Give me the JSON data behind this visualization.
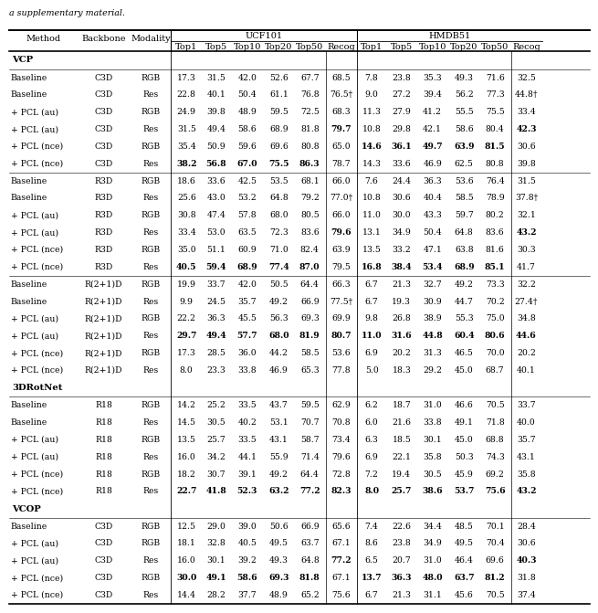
{
  "title_text": "a supplementary material.",
  "ucf101_header": "UCF101",
  "hmdb51_header": "HMDB51",
  "sub_headers": [
    "Top1",
    "Top5",
    "Top10",
    "Top20",
    "Top50",
    "Recog"
  ],
  "sections": [
    {
      "name": "VCP",
      "rows": [
        [
          "Baseline",
          "C3D",
          "RGB",
          "17.3",
          "31.5",
          "42.0",
          "52.6",
          "67.7",
          "68.5",
          "7.8",
          "23.8",
          "35.3",
          "49.3",
          "71.6",
          "32.5"
        ],
        [
          "Baseline",
          "C3D",
          "Res",
          "22.8",
          "40.1",
          "50.4",
          "61.1",
          "76.8",
          "76.5†",
          "9.0",
          "27.2",
          "39.4",
          "56.2",
          "77.3",
          "44.8†"
        ],
        [
          "+ PCL (au)",
          "C3D",
          "RGB",
          "24.9",
          "39.8",
          "48.9",
          "59.5",
          "72.5",
          "68.3",
          "11.3",
          "27.9",
          "41.2",
          "55.5",
          "75.5",
          "33.4"
        ],
        [
          "+ PCL (au)",
          "C3D",
          "Res",
          "31.5",
          "49.4",
          "58.6",
          "68.9",
          "81.8",
          "**79.7**",
          "10.8",
          "29.8",
          "42.1",
          "58.6",
          "80.4",
          "**42.3**"
        ],
        [
          "+ PCL (nce)",
          "C3D",
          "RGB",
          "35.4",
          "50.9",
          "59.6",
          "69.6",
          "80.8",
          "65.0",
          "**14.6**",
          "**36.1**",
          "**49.7**",
          "**63.9**",
          "**81.5**",
          "30.6"
        ],
        [
          "+ PCL (nce)",
          "C3D",
          "Res",
          "**38.2**",
          "**56.8**",
          "**67.0**",
          "**75.5**",
          "**86.3**",
          "78.7",
          "14.3",
          "33.6",
          "46.9",
          "62.5",
          "80.8",
          "39.8"
        ],
        [
          "Baseline",
          "R3D",
          "RGB",
          "18.6",
          "33.6",
          "42.5",
          "53.5",
          "68.1",
          "66.0",
          "7.6",
          "24.4",
          "36.3",
          "53.6",
          "76.4",
          "31.5"
        ],
        [
          "Baseline",
          "R3D",
          "Res",
          "25.6",
          "43.0",
          "53.2",
          "64.8",
          "79.2",
          "77.0†",
          "10.8",
          "30.6",
          "40.4",
          "58.5",
          "78.9",
          "37.8†"
        ],
        [
          "+ PCL (au)",
          "R3D",
          "RGB",
          "30.8",
          "47.4",
          "57.8",
          "68.0",
          "80.5",
          "66.0",
          "11.0",
          "30.0",
          "43.3",
          "59.7",
          "80.2",
          "32.1"
        ],
        [
          "+ PCL (au)",
          "R3D",
          "Res",
          "33.4",
          "53.0",
          "63.5",
          "72.3",
          "83.6",
          "**79.6**",
          "13.1",
          "34.9",
          "50.4",
          "64.8",
          "83.6",
          "**43.2**"
        ],
        [
          "+ PCL (nce)",
          "R3D",
          "RGB",
          "35.0",
          "51.1",
          "60.9",
          "71.0",
          "82.4",
          "63.9",
          "13.5",
          "33.2",
          "47.1",
          "63.8",
          "81.6",
          "30.3"
        ],
        [
          "+ PCL (nce)",
          "R3D",
          "Res",
          "**40.5**",
          "**59.4**",
          "**68.9**",
          "**77.4**",
          "**87.0**",
          "79.5",
          "**16.8**",
          "**38.4**",
          "**53.4**",
          "**68.9**",
          "**85.1**",
          "41.7"
        ],
        [
          "Baseline",
          "R(2+1)D",
          "RGB",
          "19.9",
          "33.7",
          "42.0",
          "50.5",
          "64.4",
          "66.3",
          "6.7",
          "21.3",
          "32.7",
          "49.2",
          "73.3",
          "32.2"
        ],
        [
          "Baseline",
          "R(2+1)D",
          "Res",
          "9.9",
          "24.5",
          "35.7",
          "49.2",
          "66.9",
          "77.5†",
          "6.7",
          "19.3",
          "30.9",
          "44.7",
          "70.2",
          "27.4†"
        ],
        [
          "+ PCL (au)",
          "R(2+1)D",
          "RGB",
          "22.2",
          "36.3",
          "45.5",
          "56.3",
          "69.3",
          "69.9",
          "9.8",
          "26.8",
          "38.9",
          "55.3",
          "75.0",
          "34.8"
        ],
        [
          "+ PCL (au)",
          "R(2+1)D",
          "Res",
          "**29.7**",
          "**49.4**",
          "**57.7**",
          "**68.0**",
          "**81.9**",
          "**80.7**",
          "**11.0**",
          "**31.6**",
          "**44.8**",
          "**60.4**",
          "**80.6**",
          "**44.6**"
        ],
        [
          "+ PCL (nce)",
          "R(2+1)D",
          "RGB",
          "17.3",
          "28.5",
          "36.0",
          "44.2",
          "58.5",
          "53.6",
          "6.9",
          "20.2",
          "31.3",
          "46.5",
          "70.0",
          "20.2"
        ],
        [
          "+ PCL (nce)",
          "R(2+1)D",
          "Res",
          "8.0",
          "23.3",
          "33.8",
          "46.9",
          "65.3",
          "77.8",
          "5.0",
          "18.3",
          "29.2",
          "45.0",
          "68.7",
          "40.1"
        ]
      ],
      "inner_separators": [
        5,
        11
      ]
    },
    {
      "name": "3DRotNet",
      "rows": [
        [
          "Baseline",
          "R18",
          "RGB",
          "14.2",
          "25.2",
          "33.5",
          "43.7",
          "59.5",
          "62.9",
          "6.2",
          "18.7",
          "31.0",
          "46.6",
          "70.5",
          "33.7"
        ],
        [
          "Baseline",
          "R18",
          "Res",
          "14.5",
          "30.5",
          "40.2",
          "53.1",
          "70.7",
          "70.8",
          "6.0",
          "21.6",
          "33.8",
          "49.1",
          "71.8",
          "40.0"
        ],
        [
          "+ PCL (au)",
          "R18",
          "RGB",
          "13.5",
          "25.7",
          "33.5",
          "43.1",
          "58.7",
          "73.4",
          "6.3",
          "18.5",
          "30.1",
          "45.0",
          "68.8",
          "35.7"
        ],
        [
          "+ PCL (au)",
          "R18",
          "Res",
          "16.0",
          "34.2",
          "44.1",
          "55.9",
          "71.4",
          "79.6",
          "6.9",
          "22.1",
          "35.8",
          "50.3",
          "74.3",
          "43.1"
        ],
        [
          "+ PCL (nce)",
          "R18",
          "RGB",
          "18.2",
          "30.7",
          "39.1",
          "49.2",
          "64.4",
          "72.8",
          "7.2",
          "19.4",
          "30.5",
          "45.9",
          "69.2",
          "35.8"
        ],
        [
          "+ PCL (nce)",
          "R18",
          "Res",
          "**22.7**",
          "**41.8**",
          "**52.3**",
          "**63.2**",
          "**77.2**",
          "**82.3**",
          "**8.0**",
          "**25.7**",
          "**38.6**",
          "**53.7**",
          "**75.6**",
          "**43.2**"
        ]
      ],
      "inner_separators": []
    },
    {
      "name": "VCOP",
      "rows": [
        [
          "Baseline",
          "C3D",
          "RGB",
          "12.5",
          "29.0",
          "39.0",
          "50.6",
          "66.9",
          "65.6",
          "7.4",
          "22.6",
          "34.4",
          "48.5",
          "70.1",
          "28.4"
        ],
        [
          "+ PCL (au)",
          "C3D",
          "RGB",
          "18.1",
          "32.8",
          "40.5",
          "49.5",
          "63.7",
          "67.1",
          "8.6",
          "23.8",
          "34.9",
          "49.5",
          "70.4",
          "30.6"
        ],
        [
          "+ PCL (au)",
          "C3D",
          "Res",
          "16.0",
          "30.1",
          "39.2",
          "49.3",
          "64.8",
          "**77.2**",
          "6.5",
          "20.7",
          "31.0",
          "46.4",
          "69.6",
          "**40.3**"
        ],
        [
          "+ PCL (nce)",
          "C3D",
          "RGB",
          "**30.0**",
          "**49.1**",
          "**58.6**",
          "**69.3**",
          "**81.8**",
          "67.1",
          "**13.7**",
          "**36.3**",
          "**48.0**",
          "**63.7**",
          "**81.2**",
          "31.8"
        ],
        [
          "+ PCL (nce)",
          "C3D",
          "Res",
          "14.4",
          "28.2",
          "37.7",
          "48.9",
          "65.2",
          "75.6",
          "6.7",
          "21.3",
          "31.1",
          "45.6",
          "70.5",
          "37.4"
        ]
      ],
      "inner_separators": []
    }
  ]
}
